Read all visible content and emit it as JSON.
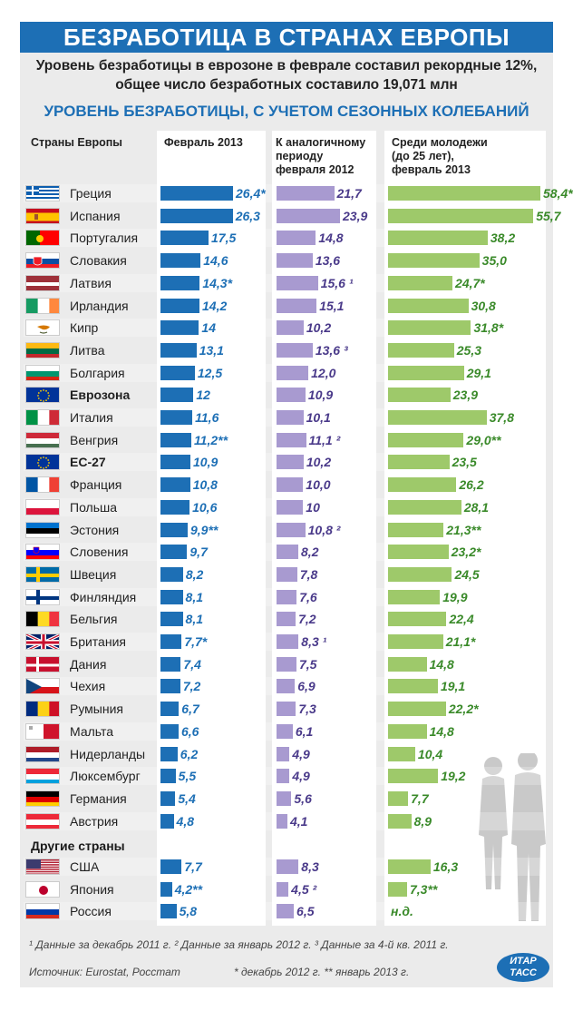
{
  "title": "БЕЗРАБОТИЦА В СТРАНАХ ЕВРОПЫ",
  "lead_line1": "Уровень безработицы в еврозоне в феврале составил рекордные 12%,",
  "lead_line2": "общее число безработных составило 19,071 млн",
  "subtitle": "УРОВЕНЬ БЕЗРАБОТИЦЫ, С УЧЕТОМ СЕЗОННЫХ КОЛЕБАНИЙ",
  "columns": {
    "country": "Страны Европы",
    "feb2013": "Февраль 2013",
    "prev_l1": "К аналогичному",
    "prev_l2": "периоду",
    "prev_l3": "февраля 2012",
    "youth_l1": "Среди молодежи",
    "youth_l2": "(до 25 лет),",
    "youth_l3": "февраль 2013"
  },
  "other_countries_label": "Другие страны",
  "footnotes": {
    "line1": "¹ Данные за декабрь 2011 г.  ² Данные за январь 2012 г.  ³ Данные за 4-й кв. 2011 г.",
    "source": "Источник: Eurostat, Росстат",
    "line2": "* декабрь 2012 г. ** январь 2013 г."
  },
  "logo": {
    "line1": "ИТАР",
    "line2": "ТАСС"
  },
  "colors": {
    "blue": "#1d6fb5",
    "purple": "#a89ad0",
    "green": "#9ec96a"
  },
  "chart_data": {
    "type": "bar",
    "title": "Уровень безработицы, с учетом сезонных колебаний",
    "series": [
      {
        "name": "Февраль 2013",
        "color": "#1d6fb5"
      },
      {
        "name": "К аналогичному периоду февраля 2012",
        "color": "#a89ad0"
      },
      {
        "name": "Среди молодежи (до 25 лет), февраль 2013",
        "color": "#9ec96a"
      }
    ],
    "rows": [
      {
        "name": "Греция",
        "flag": "gr",
        "bold": false,
        "v1": 26.4,
        "l1": "26,4*",
        "v2": 21.7,
        "l2": "21,7",
        "v3": 58.4,
        "l3": "58,4*"
      },
      {
        "name": "Испания",
        "flag": "es",
        "bold": false,
        "v1": 26.3,
        "l1": "26,3",
        "v2": 23.9,
        "l2": "23,9",
        "v3": 55.7,
        "l3": "55,7"
      },
      {
        "name": "Португалия",
        "flag": "pt",
        "bold": false,
        "v1": 17.5,
        "l1": "17,5",
        "v2": 14.8,
        "l2": "14,8",
        "v3": 38.2,
        "l3": "38,2"
      },
      {
        "name": "Словакия",
        "flag": "sk",
        "bold": false,
        "v1": 14.6,
        "l1": "14,6",
        "v2": 13.6,
        "l2": "13,6",
        "v3": 35.0,
        "l3": "35,0"
      },
      {
        "name": "Латвия",
        "flag": "lv",
        "bold": false,
        "v1": 14.3,
        "l1": "14,3*",
        "v2": 15.6,
        "l2": "15,6 ¹",
        "v3": 24.7,
        "l3": "24,7*"
      },
      {
        "name": "Ирландия",
        "flag": "ie",
        "bold": false,
        "v1": 14.2,
        "l1": "14,2",
        "v2": 15.1,
        "l2": "15,1",
        "v3": 30.8,
        "l3": "30,8"
      },
      {
        "name": "Кипр",
        "flag": "cy",
        "bold": false,
        "v1": 14,
        "l1": "14",
        "v2": 10.2,
        "l2": "10,2",
        "v3": 31.8,
        "l3": "31,8*"
      },
      {
        "name": "Литва",
        "flag": "lt",
        "bold": false,
        "v1": 13.1,
        "l1": "13,1",
        "v2": 13.6,
        "l2": "13,6 ³",
        "v3": 25.3,
        "l3": "25,3"
      },
      {
        "name": "Болгария",
        "flag": "bg",
        "bold": false,
        "v1": 12.5,
        "l1": "12,5",
        "v2": 12.0,
        "l2": "12,0",
        "v3": 29.1,
        "l3": "29,1"
      },
      {
        "name": "Еврозона",
        "flag": "eu",
        "bold": true,
        "v1": 12,
        "l1": "12",
        "v2": 10.9,
        "l2": "10,9",
        "v3": 23.9,
        "l3": "23,9"
      },
      {
        "name": "Италия",
        "flag": "it",
        "bold": false,
        "v1": 11.6,
        "l1": "11,6",
        "v2": 10.1,
        "l2": "10,1",
        "v3": 37.8,
        "l3": "37,8"
      },
      {
        "name": "Венгрия",
        "flag": "hu",
        "bold": false,
        "v1": 11.2,
        "l1": "11,2**",
        "v2": 11.1,
        "l2": "11,1 ²",
        "v3": 29.0,
        "l3": "29,0**"
      },
      {
        "name": "ЕС-27",
        "flag": "eu",
        "bold": true,
        "v1": 10.9,
        "l1": "10,9",
        "v2": 10.2,
        "l2": "10,2",
        "v3": 23.5,
        "l3": "23,5"
      },
      {
        "name": "Франция",
        "flag": "fr",
        "bold": false,
        "v1": 10.8,
        "l1": "10,8",
        "v2": 10.0,
        "l2": "10,0",
        "v3": 26.2,
        "l3": "26,2"
      },
      {
        "name": "Польша",
        "flag": "pl",
        "bold": false,
        "v1": 10.6,
        "l1": "10,6",
        "v2": 10,
        "l2": "10",
        "v3": 28.1,
        "l3": "28,1"
      },
      {
        "name": "Эстония",
        "flag": "ee",
        "bold": false,
        "v1": 9.9,
        "l1": "9,9**",
        "v2": 10.8,
        "l2": "10,8 ²",
        "v3": 21.3,
        "l3": "21,3**"
      },
      {
        "name": "Словения",
        "flag": "si",
        "bold": false,
        "v1": 9.7,
        "l1": "9,7",
        "v2": 8.2,
        "l2": "8,2",
        "v3": 23.2,
        "l3": "23,2*"
      },
      {
        "name": "Швеция",
        "flag": "se",
        "bold": false,
        "v1": 8.2,
        "l1": "8,2",
        "v2": 7.8,
        "l2": "7,8",
        "v3": 24.5,
        "l3": "24,5"
      },
      {
        "name": "Финляндия",
        "flag": "fi",
        "bold": false,
        "v1": 8.1,
        "l1": "8,1",
        "v2": 7.6,
        "l2": "7,6",
        "v3": 19.9,
        "l3": "19,9"
      },
      {
        "name": "Бельгия",
        "flag": "be",
        "bold": false,
        "v1": 8.1,
        "l1": "8,1",
        "v2": 7.2,
        "l2": "7,2",
        "v3": 22.4,
        "l3": "22,4"
      },
      {
        "name": "Британия",
        "flag": "gb",
        "bold": false,
        "v1": 7.7,
        "l1": "7,7*",
        "v2": 8.3,
        "l2": "8,3 ¹",
        "v3": 21.1,
        "l3": "21,1*"
      },
      {
        "name": "Дания",
        "flag": "dk",
        "bold": false,
        "v1": 7.4,
        "l1": "7,4",
        "v2": 7.5,
        "l2": "7,5",
        "v3": 14.8,
        "l3": "14,8"
      },
      {
        "name": "Чехия",
        "flag": "cz",
        "bold": false,
        "v1": 7.2,
        "l1": "7,2",
        "v2": 6.9,
        "l2": "6,9",
        "v3": 19.1,
        "l3": "19,1"
      },
      {
        "name": "Румыния",
        "flag": "ro",
        "bold": false,
        "v1": 6.7,
        "l1": "6,7",
        "v2": 7.3,
        "l2": "7,3",
        "v3": 22.2,
        "l3": "22,2*"
      },
      {
        "name": "Мальта",
        "flag": "mt",
        "bold": false,
        "v1": 6.6,
        "l1": "6,6",
        "v2": 6.1,
        "l2": "6,1",
        "v3": 14.8,
        "l3": "14,8"
      },
      {
        "name": "Нидерланды",
        "flag": "nl",
        "bold": false,
        "v1": 6.2,
        "l1": "6,2",
        "v2": 4.9,
        "l2": "4,9",
        "v3": 10.4,
        "l3": "10,4"
      },
      {
        "name": "Люксембург",
        "flag": "lu",
        "bold": false,
        "v1": 5.5,
        "l1": "5,5",
        "v2": 4.9,
        "l2": "4,9",
        "v3": 19.2,
        "l3": "19,2"
      },
      {
        "name": "Германия",
        "flag": "de",
        "bold": false,
        "v1": 5.4,
        "l1": "5,4",
        "v2": 5.6,
        "l2": "5,6",
        "v3": 7.7,
        "l3": "7,7"
      },
      {
        "name": "Австрия",
        "flag": "at",
        "bold": false,
        "v1": 4.8,
        "l1": "4,8",
        "v2": 4.1,
        "l2": "4,1",
        "v3": 8.9,
        "l3": "8,9"
      }
    ],
    "other_rows": [
      {
        "name": "США",
        "flag": "us",
        "bold": false,
        "v1": 7.7,
        "l1": "7,7",
        "v2": 8.3,
        "l2": "8,3",
        "v3": 16.3,
        "l3": "16,3"
      },
      {
        "name": "Япония",
        "flag": "jp",
        "bold": false,
        "v1": 4.2,
        "l1": "4,2**",
        "v2": 4.5,
        "l2": "4,5 ²",
        "v3": 7.3,
        "l3": "7,3**"
      },
      {
        "name": "Россия",
        "flag": "ru",
        "bold": false,
        "v1": 5.8,
        "l1": "5,8",
        "v2": 6.5,
        "l2": "6,5",
        "v3": null,
        "l3": "н.д."
      }
    ]
  }
}
